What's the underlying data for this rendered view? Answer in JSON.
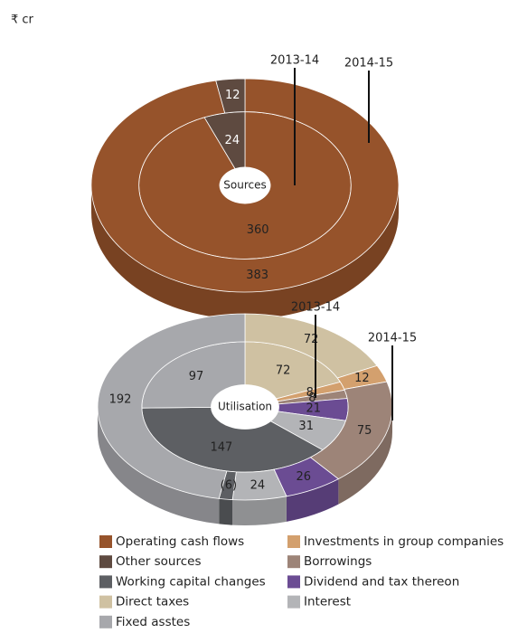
{
  "unit": "₹ cr",
  "chart_data": [
    {
      "type": "donut3d",
      "center_label": "Sources",
      "categories": [
        "Operating cash flows",
        "Other sources"
      ],
      "colors": [
        "#96532b",
        "#5e4a40"
      ],
      "series": [
        {
          "name": "2013-14",
          "values": [
            360,
            24
          ]
        },
        {
          "name": "2014-15",
          "values": [
            383,
            12
          ]
        }
      ]
    },
    {
      "type": "donut3d",
      "center_label": "Utilisation",
      "categories": [
        "Direct taxes",
        "Investments in group companies",
        "Borrowings",
        "Dividend and tax thereon",
        "Interest",
        "Working capital changes",
        "Fixed asstes"
      ],
      "colors": [
        "#cfc1a2",
        "#d3a06e",
        "#9d8478",
        "#6b4c93",
        "#b3b4b7",
        "#5d5f63",
        "#a7a8ac"
      ],
      "series": [
        {
          "name": "2013-14",
          "values": [
            72,
            8,
            8,
            21,
            31,
            147,
            97
          ]
        },
        {
          "name": "2014-15",
          "values": [
            72,
            12,
            75,
            26,
            24,
            -6,
            192
          ],
          "value_labels": [
            null,
            null,
            null,
            null,
            null,
            "(6)",
            null
          ]
        }
      ]
    }
  ]
}
